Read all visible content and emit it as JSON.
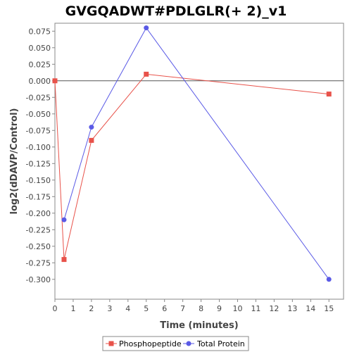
{
  "chart_data": {
    "type": "line",
    "title": "GVGQADWT#PDLGLR(+ 2)_v1",
    "xlabel": "Time (minutes)",
    "ylabel": "log2(dDAVP/Control)",
    "xlim": [
      0,
      15.8
    ],
    "ylim": [
      -0.33,
      0.087
    ],
    "xticks": [
      0,
      1,
      2,
      3,
      4,
      5,
      6,
      7,
      8,
      9,
      10,
      11,
      12,
      13,
      14,
      15
    ],
    "xtick_labels": [
      "0",
      "1",
      "2",
      "3",
      "4",
      "5",
      "6",
      "7",
      "8",
      "9",
      "10",
      "11",
      "12",
      "13",
      "14",
      "15"
    ],
    "yticks": [
      0.075,
      0.05,
      0.025,
      0.0,
      -0.025,
      -0.05,
      -0.075,
      -0.1,
      -0.125,
      -0.15,
      -0.175,
      -0.2,
      -0.225,
      -0.25,
      -0.275,
      -0.3
    ],
    "ytick_labels": [
      "0.075",
      "0.050",
      "0.025",
      "0.000",
      "-0.025",
      "-0.050",
      "-0.075",
      "-0.100",
      "-0.125",
      "-0.150",
      "-0.175",
      "-0.200",
      "-0.225",
      "-0.250",
      "-0.275",
      "-0.300"
    ],
    "zero_line": true,
    "grid": false,
    "legend_position": "bottom",
    "series": [
      {
        "name": "Phosphopeptide",
        "color": "#e8524a",
        "marker": "square",
        "x": [
          0,
          0.5,
          2,
          5,
          15
        ],
        "y": [
          0.0,
          -0.27,
          -0.09,
          0.01,
          -0.02
        ]
      },
      {
        "name": "Total Protein",
        "color": "#5a5ae6",
        "marker": "circle",
        "x": [
          0.5,
          2,
          5,
          15
        ],
        "y": [
          -0.21,
          -0.07,
          0.08,
          -0.3
        ]
      }
    ]
  }
}
